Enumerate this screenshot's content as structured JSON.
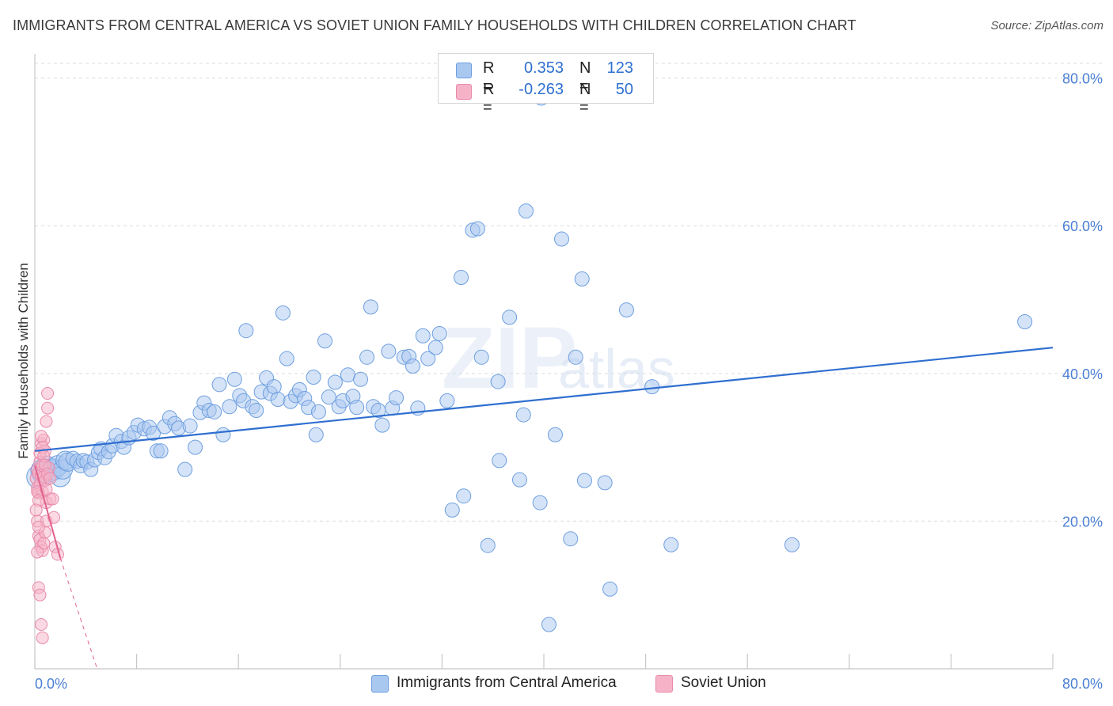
{
  "header": {
    "title": "IMMIGRANTS FROM CENTRAL AMERICA VS SOVIET UNION FAMILY HOUSEHOLDS WITH CHILDREN CORRELATION CHART",
    "source": "Source: ZipAtlas.com"
  },
  "watermark": {
    "zip": "ZIP",
    "atlas": "atlas"
  },
  "legend": {
    "series1": {
      "r_label": "R =",
      "r_value": "0.353",
      "n_label": "N =",
      "n_value": "123",
      "color": "#a9c8f0"
    },
    "series2": {
      "r_label": "R =",
      "r_value": "-0.263",
      "n_label": "N =",
      "n_value": "50",
      "color": "#f6b3c8"
    }
  },
  "bottom_legend": {
    "series1_label": "Immigrants from Central America",
    "series2_label": "Soviet Union"
  },
  "chart_data": {
    "type": "scatter",
    "title": "IMMIGRANTS FROM CENTRAL AMERICA VS SOVIET UNION FAMILY HOUSEHOLDS WITH CHILDREN CORRELATION CHART",
    "xlabel": "",
    "ylabel": "Family Households with Children",
    "xlim": [
      0,
      80
    ],
    "ylim": [
      0,
      82
    ],
    "x_tick_labels": [
      "0.0%",
      "80.0%"
    ],
    "y_ticks": [
      20,
      40,
      60,
      80
    ],
    "y_tick_labels": [
      "20.0%",
      "40.0%",
      "60.0%",
      "80.0%"
    ],
    "grid": true,
    "series": [
      {
        "name": "Immigrants from Central America",
        "color": "#a9c8f0",
        "stroke": "#6e9fe0",
        "trend": {
          "x": [
            0,
            80
          ],
          "y": [
            29.5,
            43.5
          ],
          "color": "#2f6fd0"
        },
        "points": [
          [
            0.3,
            26.0
          ],
          [
            0.6,
            26.8
          ],
          [
            0.9,
            27.3
          ],
          [
            1.2,
            26.8
          ],
          [
            1.5,
            27.0
          ],
          [
            1.8,
            27.5
          ],
          [
            2.0,
            26.0
          ],
          [
            2.2,
            27.0
          ],
          [
            2.4,
            28.2
          ],
          [
            2.6,
            28.0
          ],
          [
            3.0,
            28.5
          ],
          [
            3.3,
            28.1
          ],
          [
            3.6,
            27.5
          ],
          [
            3.8,
            28.2
          ],
          [
            4.1,
            28.0
          ],
          [
            4.4,
            27.0
          ],
          [
            4.7,
            28.3
          ],
          [
            5.0,
            29.3
          ],
          [
            5.2,
            29.8
          ],
          [
            5.5,
            28.6
          ],
          [
            5.8,
            29.4
          ],
          [
            6.1,
            30.2
          ],
          [
            6.4,
            31.6
          ],
          [
            6.8,
            30.8
          ],
          [
            7.0,
            30.0
          ],
          [
            7.4,
            31.3
          ],
          [
            7.8,
            32.0
          ],
          [
            8.1,
            33.0
          ],
          [
            8.6,
            32.5
          ],
          [
            9.0,
            32.7
          ],
          [
            9.3,
            31.9
          ],
          [
            9.6,
            29.5
          ],
          [
            9.9,
            29.5
          ],
          [
            10.2,
            32.8
          ],
          [
            10.6,
            34.0
          ],
          [
            11.0,
            33.2
          ],
          [
            11.3,
            32.6
          ],
          [
            11.8,
            27.0
          ],
          [
            12.2,
            32.9
          ],
          [
            12.6,
            30.0
          ],
          [
            13.0,
            34.7
          ],
          [
            13.3,
            36.0
          ],
          [
            13.7,
            35.0
          ],
          [
            14.1,
            34.8
          ],
          [
            14.5,
            38.5
          ],
          [
            14.8,
            31.7
          ],
          [
            15.3,
            35.5
          ],
          [
            15.7,
            39.2
          ],
          [
            16.1,
            37.0
          ],
          [
            16.4,
            36.3
          ],
          [
            16.6,
            45.8
          ],
          [
            17.1,
            35.5
          ],
          [
            17.4,
            35.0
          ],
          [
            17.8,
            37.5
          ],
          [
            18.2,
            39.4
          ],
          [
            18.5,
            37.3
          ],
          [
            18.8,
            38.2
          ],
          [
            19.1,
            36.5
          ],
          [
            19.5,
            48.2
          ],
          [
            19.8,
            42.0
          ],
          [
            20.1,
            36.2
          ],
          [
            20.5,
            37.0
          ],
          [
            20.8,
            37.8
          ],
          [
            21.2,
            36.6
          ],
          [
            21.5,
            35.4
          ],
          [
            21.9,
            39.5
          ],
          [
            22.1,
            31.7
          ],
          [
            22.3,
            34.8
          ],
          [
            22.8,
            44.4
          ],
          [
            23.1,
            36.8
          ],
          [
            23.6,
            38.8
          ],
          [
            23.9,
            35.5
          ],
          [
            24.2,
            36.3
          ],
          [
            24.6,
            39.8
          ],
          [
            25.0,
            36.9
          ],
          [
            25.3,
            35.4
          ],
          [
            25.6,
            39.2
          ],
          [
            26.1,
            42.2
          ],
          [
            26.4,
            49.0
          ],
          [
            26.6,
            35.5
          ],
          [
            27.0,
            35.0
          ],
          [
            27.3,
            33.0
          ],
          [
            27.8,
            43.0
          ],
          [
            28.1,
            35.3
          ],
          [
            28.4,
            36.7
          ],
          [
            29.0,
            42.2
          ],
          [
            29.4,
            42.3
          ],
          [
            29.7,
            41.0
          ],
          [
            30.1,
            35.3
          ],
          [
            30.5,
            45.1
          ],
          [
            30.9,
            42.0
          ],
          [
            31.5,
            43.5
          ],
          [
            31.8,
            45.4
          ],
          [
            32.4,
            36.3
          ],
          [
            32.8,
            21.5
          ],
          [
            33.5,
            53.0
          ],
          [
            33.7,
            23.4
          ],
          [
            34.4,
            59.4
          ],
          [
            34.8,
            59.6
          ],
          [
            35.1,
            42.2
          ],
          [
            35.6,
            16.7
          ],
          [
            36.4,
            38.9
          ],
          [
            36.5,
            28.2
          ],
          [
            37.3,
            47.6
          ],
          [
            38.1,
            25.6
          ],
          [
            38.4,
            34.4
          ],
          [
            38.6,
            62.0
          ],
          [
            39.7,
            22.5
          ],
          [
            39.8,
            77.3
          ],
          [
            40.4,
            6.0
          ],
          [
            40.9,
            31.7
          ],
          [
            41.4,
            58.2
          ],
          [
            42.1,
            17.6
          ],
          [
            42.5,
            42.2
          ],
          [
            43.0,
            52.8
          ],
          [
            43.2,
            25.5
          ],
          [
            44.8,
            25.2
          ],
          [
            45.2,
            10.8
          ],
          [
            46.5,
            48.6
          ],
          [
            48.5,
            38.2
          ],
          [
            50.0,
            16.8
          ],
          [
            59.5,
            16.8
          ],
          [
            77.8,
            47.0
          ]
        ]
      },
      {
        "name": "Soviet Union",
        "color": "#f6b3c8",
        "stroke": "#e98aab",
        "trend": {
          "x": [
            0,
            2
          ],
          "y": [
            27.5,
            15.0
          ],
          "dashed_to": [
            4.9,
            0
          ],
          "color": "#e2628d"
        },
        "points": [
          [
            0.1,
            25.8
          ],
          [
            0.2,
            27.0
          ],
          [
            0.2,
            24.5
          ],
          [
            0.3,
            26.5
          ],
          [
            0.3,
            23.8
          ],
          [
            0.4,
            28.0
          ],
          [
            0.4,
            25.0
          ],
          [
            0.5,
            26.2
          ],
          [
            0.5,
            30.5
          ],
          [
            0.6,
            24.0
          ],
          [
            0.6,
            27.5
          ],
          [
            0.7,
            26.0
          ],
          [
            0.7,
            31.0
          ],
          [
            0.8,
            29.5
          ],
          [
            0.8,
            25.5
          ],
          [
            0.9,
            33.5
          ],
          [
            0.9,
            22.5
          ],
          [
            1.0,
            35.3
          ],
          [
            1.0,
            37.3
          ],
          [
            1.1,
            27.2
          ],
          [
            0.2,
            20.0
          ],
          [
            0.3,
            18.0
          ],
          [
            0.4,
            17.5
          ],
          [
            0.5,
            16.5
          ],
          [
            0.6,
            16.0
          ],
          [
            0.7,
            17.0
          ],
          [
            0.8,
            18.5
          ],
          [
            0.9,
            20.0
          ],
          [
            1.2,
            23.0
          ],
          [
            1.4,
            23.0
          ],
          [
            1.5,
            20.5
          ],
          [
            1.6,
            16.5
          ],
          [
            1.8,
            15.5
          ],
          [
            0.3,
            11.0
          ],
          [
            0.4,
            10.0
          ],
          [
            0.5,
            6.0
          ],
          [
            0.6,
            4.2
          ],
          [
            0.2,
            24.0
          ],
          [
            0.4,
            29.2
          ],
          [
            0.5,
            31.5
          ],
          [
            0.6,
            30.0
          ],
          [
            0.3,
            22.8
          ],
          [
            0.7,
            28.8
          ],
          [
            0.8,
            27.6
          ],
          [
            1.0,
            26.4
          ],
          [
            1.2,
            25.8
          ],
          [
            0.1,
            21.5
          ],
          [
            0.2,
            15.8
          ],
          [
            0.3,
            19.2
          ],
          [
            0.9,
            24.3
          ]
        ]
      }
    ]
  }
}
